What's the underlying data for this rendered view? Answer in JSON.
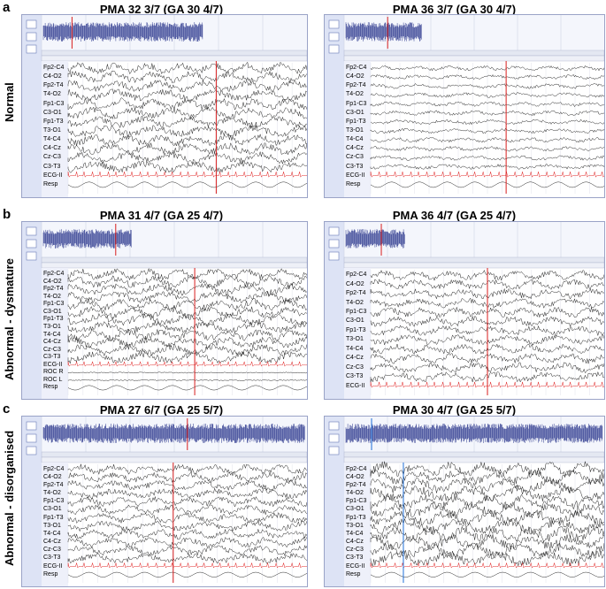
{
  "rows": [
    {
      "letter": "a",
      "label": "Normal",
      "panels": [
        {
          "title": "PMA 32 3/7 (GA 30 4/7)",
          "cursor_color": "#d81e1e",
          "channels": [
            "Fp2-C4",
            "C4-O2",
            "Fp2-T4",
            "T4-O2",
            "Fp1-C3",
            "C3-O1",
            "Fp1-T3",
            "T3-O1",
            "T4-C4",
            "C4-Cz",
            "Cz-C3",
            "C3-T3",
            "ECG-II",
            "Resp"
          ]
        },
        {
          "title": "PMA 36 3/7 (GA 30 4/7)",
          "cursor_color": "#d81e1e",
          "channels": [
            "Fp2-C4",
            "C4-O2",
            "Fp2-T4",
            "T4-O2",
            "Fp1-C3",
            "C3-O1",
            "Fp1-T3",
            "T3-O1",
            "T4-C4",
            "C4-Cz",
            "Cz-C3",
            "C3-T3",
            "ECG-II",
            "Resp"
          ]
        }
      ]
    },
    {
      "letter": "b",
      "label": "Abnormal - dysmature",
      "panels": [
        {
          "title": "PMA 31 4/7 (GA 25 4/7)",
          "cursor_color": "#d81e1e",
          "channels": [
            "Fp2-C4",
            "C4-O2",
            "Fp2-T4",
            "T4-O2",
            "Fp1-C3",
            "C3-O1",
            "Fp1-T3",
            "T3-O1",
            "T4-C4",
            "C4-Cz",
            "Cz-C3",
            "C3-T3",
            "ECG-II",
            "ROC R",
            "ROC L",
            "Resp"
          ]
        },
        {
          "title": "PMA 36 4/7 (GA 25 4/7)",
          "cursor_color": "#d81e1e",
          "channels": [
            "Fp2-C4",
            "C4-O2",
            "Fp2-T4",
            "T4-O2",
            "Fp1-C3",
            "C3-O1",
            "Fp1-T3",
            "T3-O1",
            "T4-C4",
            "C4-Cz",
            "Cz-C3",
            "C3-T3",
            "ECG-II"
          ]
        }
      ]
    },
    {
      "letter": "c",
      "label": "Abnormal - disorganised",
      "panels": [
        {
          "title": "PMA 27 6/7 (GA 25 5/7)",
          "cursor_color": "#d81e1e",
          "channels": [
            "Fp2-C4",
            "C4-O2",
            "Fp2-T4",
            "T4-O2",
            "Fp1-C3",
            "C3-O1",
            "Fp1-T3",
            "T3-O1",
            "T4-C4",
            "C4-Cz",
            "Cz-C3",
            "C3-T3",
            "ECG-II",
            "Resp"
          ]
        },
        {
          "title": "PMA 30 4/7 (GA 25 5/7)",
          "cursor_color": "#1e6fd8",
          "channels": [
            "Fp2-C4",
            "C4-O2",
            "Fp2-T4",
            "T4-O2",
            "Fp1-C3",
            "C3-O1",
            "Fp1-T3",
            "T3-O1",
            "T4-C4",
            "C4-Cz",
            "Cz-C3",
            "C3-T3",
            "ECG-II",
            "Resp"
          ]
        }
      ]
    }
  ]
}
